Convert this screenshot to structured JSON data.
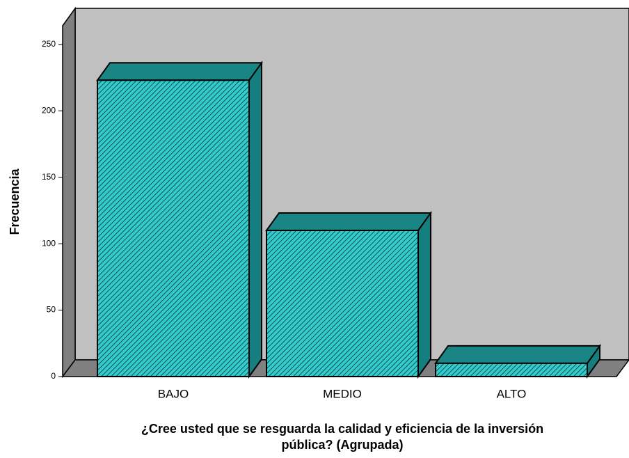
{
  "chart_data": {
    "type": "bar3d",
    "categories": [
      "BAJO",
      "MEDIO",
      "ALTO"
    ],
    "values": [
      223,
      110,
      10
    ],
    "color": "#33cccc",
    "ylabel": "Frecuencia",
    "xlabel": [
      "¿Cree usted que se resguarda la calidad y eficiencia de la inversión",
      "pública? (Agrupada)"
    ],
    "ylim": [
      0,
      264
    ],
    "yticks": [
      0,
      50,
      100,
      150,
      200,
      250
    ],
    "grid": false
  }
}
